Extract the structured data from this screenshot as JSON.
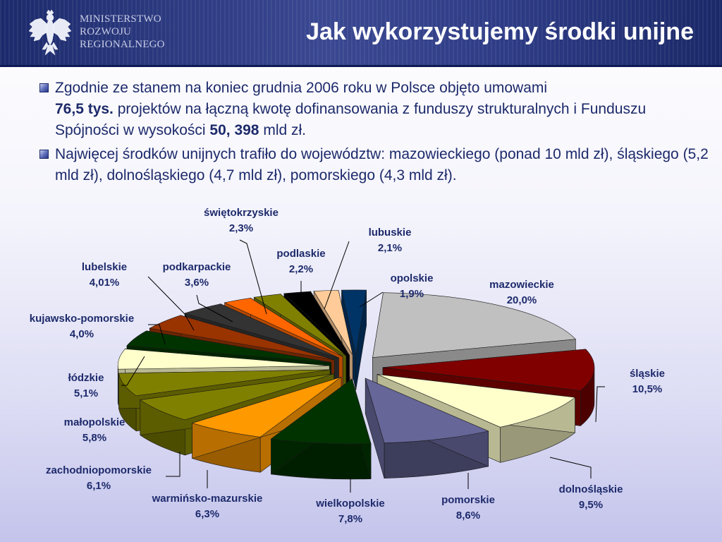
{
  "header": {
    "ministry_lines": [
      "MINISTERSTWO",
      "ROZWOJU",
      "REGIONALNEGO"
    ],
    "title": "Jak wykorzystujemy środki unijne"
  },
  "bullets": [
    {
      "part1": "Zgodnie ze stanem na koniec grudnia 2006 roku w Polsce objęto umowami",
      "bold1": "76,5 tys.",
      "part2": " projektów na łączną kwotę dofinansowania z funduszy strukturalnych i Funduszu Spójności w wysokości ",
      "bold2": "50, 398",
      "part3": " mld zł."
    },
    {
      "text": "Najwięcej środków unijnych trafiło do województw: mazowieckiego (ponad 10 mld zł), śląskiego (5,2 mld zł), dolnośląskiego (4,7 mld zł), pomorskiego (4,3 mld zł)."
    }
  ],
  "chart_data": {
    "type": "pie",
    "style": "3d-exploded",
    "slices": [
      {
        "name": "mazowieckie",
        "label": "20,0%",
        "value": 20.0,
        "color": "#c0c0c0"
      },
      {
        "name": "śląskie",
        "label": "10,5%",
        "value": 10.5,
        "color": "#800000"
      },
      {
        "name": "dolnośląskie",
        "label": "9,5%",
        "value": 9.5,
        "color": "#ffffcc"
      },
      {
        "name": "pomorskie",
        "label": "8,6%",
        "value": 8.6,
        "color": "#666699"
      },
      {
        "name": "wielkopolskie",
        "label": "7,8%",
        "value": 7.8,
        "color": "#003300"
      },
      {
        "name": "warmińsko-mazurskie",
        "label": "6,3%",
        "value": 6.3,
        "color": "#ff9900"
      },
      {
        "name": "zachodniopomorskie",
        "label": "6,1%",
        "value": 6.1,
        "color": "#808000"
      },
      {
        "name": "małopolskie",
        "label": "5,8%",
        "value": 5.8,
        "color": "#808000"
      },
      {
        "name": "łódzkie",
        "label": "5,1%",
        "value": 5.1,
        "color": "#ffffcc"
      },
      {
        "name": "kujawsko-pomorskie",
        "label": "4,0%",
        "value": 4.0,
        "color": "#003300"
      },
      {
        "name": "lubelskie",
        "label": "4,01%",
        "value": 4.01,
        "color": "#993300"
      },
      {
        "name": "podkarpackie",
        "label": "3,6%",
        "value": 3.6,
        "color": "#333333"
      },
      {
        "name": "świętokrzyskie",
        "label": "2,3%",
        "value": 2.3,
        "color": "#ff6600"
      },
      {
        "name": "podlaskie",
        "label": "2,2%",
        "value": 2.2,
        "color": "#808000"
      },
      {
        "name": "lubuskie",
        "label": "2,1%",
        "value": 2.1,
        "color": "#000000"
      },
      {
        "name": "opolskie",
        "label": "1,9%",
        "value": 1.9,
        "color": "#ffcc99"
      },
      {
        "name": "",
        "label": "",
        "value": 1.9,
        "color": "#003366"
      }
    ]
  }
}
